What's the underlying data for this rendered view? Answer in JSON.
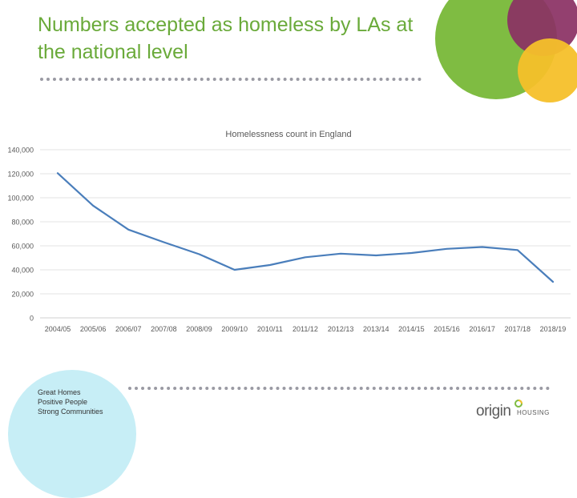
{
  "slide": {
    "title": "Numbers accepted as homeless by LAs at the national level",
    "tagline": [
      "Great Homes",
      "Positive People",
      "Strong Communities"
    ],
    "logo": {
      "main": "origin",
      "sub": "HOUSING"
    },
    "colors": {
      "title": "#6aaa3a",
      "line": "#4a7ebb",
      "grid": "#e3e3e3",
      "green": "#7fbc42",
      "purple": "#8b3264",
      "yellow": "#f5c02a",
      "cyan": "#c7eef6"
    }
  },
  "chart_data": {
    "type": "line",
    "title": "Homelessness count in England",
    "categories": [
      "2004/05",
      "2005/06",
      "2006/07",
      "2007/08",
      "2008/09",
      "2009/10",
      "2010/11",
      "2011/12",
      "2012/13",
      "2013/14",
      "2014/15",
      "2015/16",
      "2016/17",
      "2017/18",
      "2018/19"
    ],
    "series": [
      {
        "values": [
          120500,
          93500,
          73500,
          63000,
          53000,
          40000,
          44000,
          50500,
          53500,
          52000,
          54000,
          57500,
          59000,
          56500,
          30000
        ]
      }
    ],
    "ylim": [
      0,
      140000
    ],
    "yticks": [
      0,
      20000,
      40000,
      60000,
      80000,
      100000,
      120000,
      140000
    ],
    "ytick_labels": [
      "0",
      "20,000",
      "40,000",
      "60,000",
      "80,000",
      "100,000",
      "120,000",
      "140,000"
    ],
    "grid": true,
    "legend": "none"
  }
}
